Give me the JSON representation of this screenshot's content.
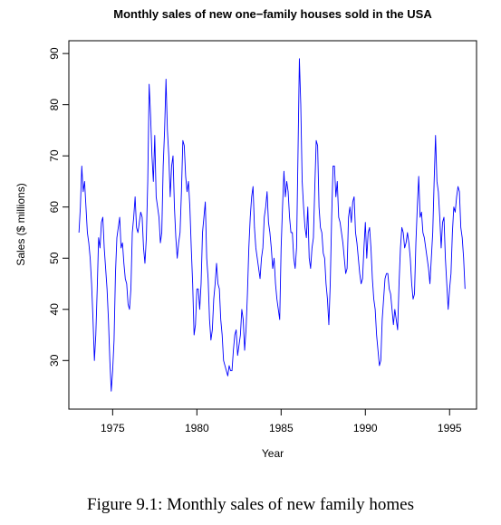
{
  "chart_data": {
    "type": "line",
    "title": "Monthly sales of new one−family houses sold in the USA",
    "xlabel": "Year",
    "ylabel": "Sales ($ millions)",
    "xlim": [
      1972.4,
      1996.6
    ],
    "ylim": [
      20.5,
      92.5
    ],
    "x_ticks": [
      "1975",
      "1980",
      "1985",
      "1990",
      "1995"
    ],
    "y_ticks": [
      "30",
      "40",
      "50",
      "60",
      "70",
      "80",
      "90"
    ],
    "grid": false,
    "series": [
      {
        "color": "#0000ff",
        "x_start": 1973.0,
        "x_step_months": 1,
        "values": [
          55,
          60,
          68,
          63,
          65,
          60,
          55,
          53,
          50,
          45,
          38,
          30,
          35,
          44,
          54,
          52,
          57,
          58,
          52,
          48,
          44,
          38,
          30,
          24,
          28,
          34,
          47,
          54,
          56,
          58,
          52,
          53,
          49,
          46,
          45,
          41,
          40,
          44,
          55,
          58,
          62,
          56,
          55,
          57,
          59,
          58,
          52,
          49,
          54,
          65,
          84,
          78,
          70,
          65,
          74,
          62,
          60,
          58,
          53,
          55,
          68,
          75,
          85,
          75,
          70,
          62,
          68,
          70,
          60,
          54,
          50,
          53,
          55,
          63,
          73,
          72,
          66,
          63,
          65,
          60,
          52,
          45,
          35,
          37,
          44,
          44,
          40,
          45,
          55,
          58,
          61,
          50,
          46,
          38,
          34,
          36,
          42,
          45,
          49,
          45,
          44,
          38,
          35,
          30,
          29,
          28,
          27,
          29,
          28,
          28,
          32,
          35,
          36,
          31,
          33,
          35,
          40,
          38,
          32,
          36,
          43,
          52,
          58,
          62,
          64,
          56,
          52,
          50,
          48,
          46,
          50,
          52,
          58,
          60,
          63,
          57,
          55,
          52,
          48,
          50,
          45,
          42,
          40,
          38,
          52,
          60,
          67,
          62,
          65,
          63,
          58,
          55,
          55,
          50,
          48,
          52,
          70,
          89,
          80,
          65,
          60,
          56,
          54,
          60,
          50,
          48,
          52,
          54,
          64,
          73,
          72,
          60,
          56,
          55,
          51,
          50,
          45,
          42,
          37,
          45,
          58,
          68,
          68,
          62,
          65,
          58,
          57,
          55,
          53,
          50,
          47,
          48,
          58,
          60,
          57,
          61,
          62,
          55,
          53,
          50,
          47,
          45,
          46,
          52,
          57,
          50,
          55,
          56,
          52,
          46,
          42,
          40,
          35,
          32,
          29,
          30,
          38,
          42,
          46,
          47,
          47,
          44,
          43,
          40,
          37,
          40,
          38,
          36,
          45,
          52,
          56,
          55,
          52,
          53,
          55,
          53,
          50,
          45,
          42,
          43,
          53,
          60,
          66,
          58,
          59,
          55,
          54,
          52,
          50,
          48,
          45,
          50,
          55,
          65,
          74,
          65,
          63,
          58,
          52,
          57,
          58,
          50,
          45,
          40,
          44,
          47,
          55,
          60,
          59,
          62,
          64,
          63,
          56,
          54,
          50,
          44
        ]
      }
    ]
  },
  "caption": "Figure 9.1: Monthly sales of new family homes"
}
